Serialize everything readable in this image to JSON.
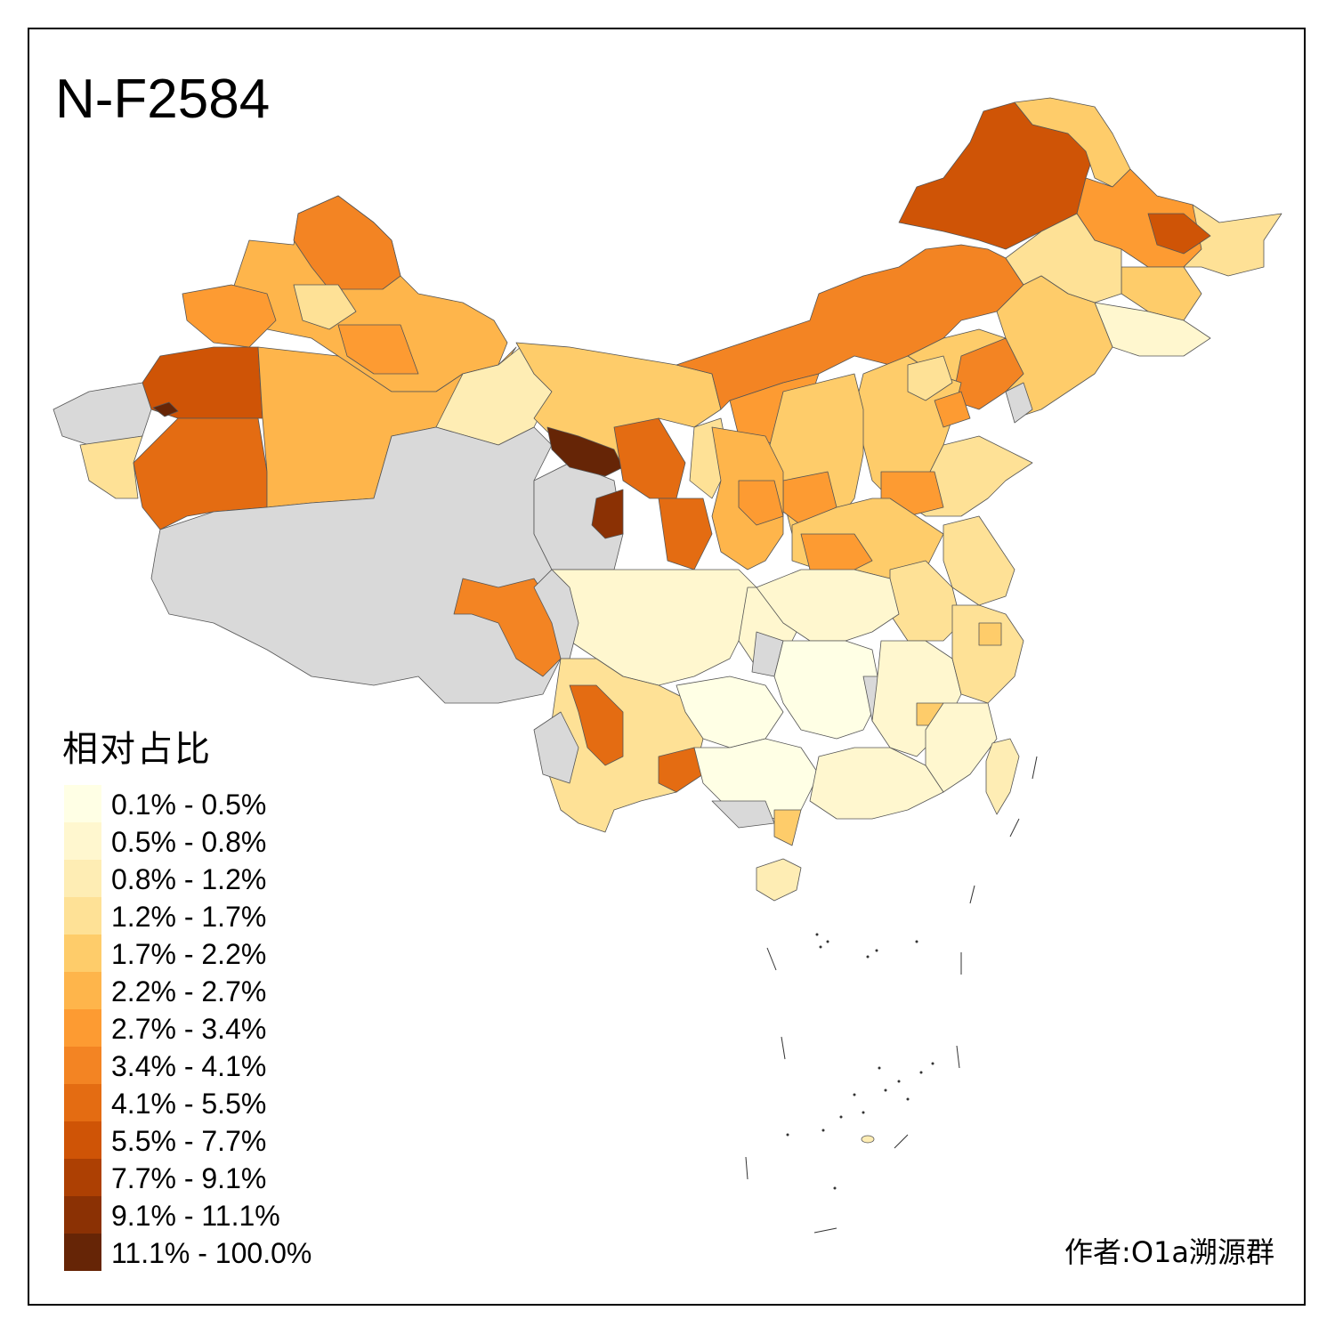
{
  "title": "N-F2584",
  "legend": {
    "title": "相对占比",
    "items": [
      {
        "label": "0.1% - 0.5%",
        "color": "#ffffe5"
      },
      {
        "label": "0.5% - 0.8%",
        "color": "#fff7cf"
      },
      {
        "label": "0.8% - 1.2%",
        "color": "#feedb4"
      },
      {
        "label": "1.2% - 1.7%",
        "color": "#fee196"
      },
      {
        "label": "1.7% - 2.2%",
        "color": "#fecc6a"
      },
      {
        "label": "2.2% - 2.7%",
        "color": "#feb54b"
      },
      {
        "label": "2.7% - 3.4%",
        "color": "#fd9b32"
      },
      {
        "label": "3.4% - 4.1%",
        "color": "#f38423"
      },
      {
        "label": "4.1% - 5.5%",
        "color": "#e46c12"
      },
      {
        "label": "5.5% - 7.7%",
        "color": "#cf5406"
      },
      {
        "label": "7.7% - 9.1%",
        "color": "#ad4003"
      },
      {
        "label": "9.1% - 11.1%",
        "color": "#8b3104"
      },
      {
        "label": "11.1% - 100.0%",
        "color": "#662506"
      }
    ]
  },
  "no_data_color": "#d9d9d9",
  "credit": "作者:O1a溯源群"
}
